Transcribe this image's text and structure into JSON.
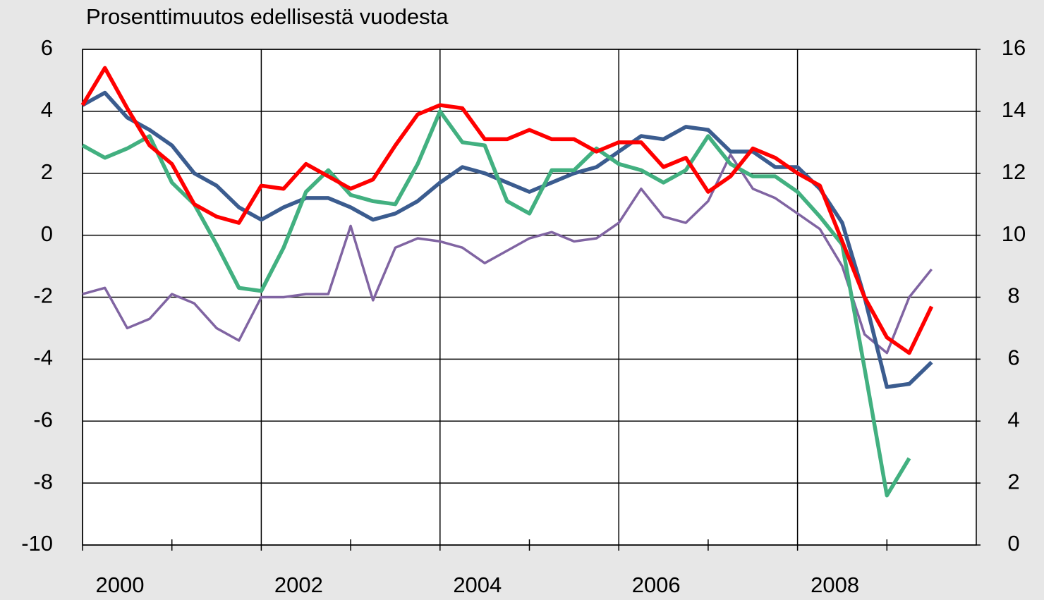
{
  "chart_data": {
    "type": "line",
    "title": "Prosenttimuutos edellisestä vuodesta",
    "x": [
      2000,
      2000.25,
      2000.5,
      2000.75,
      2001,
      2001.25,
      2001.5,
      2001.75,
      2002,
      2002.25,
      2002.5,
      2002.75,
      2003,
      2003.25,
      2003.5,
      2003.75,
      2004,
      2004.25,
      2004.5,
      2004.75,
      2005,
      2005.25,
      2005.5,
      2005.75,
      2006,
      2006.25,
      2006.5,
      2006.75,
      2007,
      2007.25,
      2007.5,
      2007.75,
      2008,
      2008.25,
      2008.5,
      2008.75,
      2009,
      2009.25,
      2009.5
    ],
    "series": [
      {
        "color": "#8064a2",
        "axis": "y2",
        "values": [
          8.1,
          8.3,
          7.0,
          7.3,
          8.1,
          7.8,
          7.0,
          6.6,
          8.0,
          8.0,
          8.1,
          8.1,
          10.3,
          7.9,
          9.6,
          9.9,
          9.8,
          9.6,
          9.1,
          9.5,
          9.9,
          10.1,
          9.8,
          9.9,
          10.4,
          11.5,
          10.6,
          10.4,
          11.1,
          12.6,
          11.5,
          11.2,
          10.7,
          10.2,
          9.0,
          6.8,
          6.2,
          8.0,
          8.9
        ]
      },
      {
        "color": "#3b5c8f",
        "values": [
          4.2,
          4.6,
          3.8,
          3.4,
          2.9,
          2.0,
          1.6,
          0.9,
          0.5,
          0.9,
          1.2,
          1.2,
          0.9,
          0.5,
          0.7,
          1.1,
          1.7,
          2.2,
          2.0,
          1.7,
          1.4,
          1.7,
          2.0,
          2.2,
          2.7,
          3.2,
          3.1,
          3.5,
          3.4,
          2.7,
          2.7,
          2.2,
          2.2,
          1.5,
          0.4,
          -2.0,
          -4.9,
          -4.8,
          -4.1
        ]
      },
      {
        "color": "#42b080",
        "values": [
          2.9,
          2.5,
          2.8,
          3.2,
          1.7,
          1.0,
          -0.3,
          -1.7,
          -1.8,
          -0.4,
          1.4,
          2.1,
          1.3,
          1.1,
          1.0,
          2.3,
          4.0,
          3.0,
          2.9,
          1.1,
          0.7,
          2.1,
          2.1,
          2.8,
          2.3,
          2.1,
          1.7,
          2.1,
          3.2,
          2.3,
          1.9,
          1.9,
          1.4,
          0.6,
          -0.3,
          -4.3,
          -8.4,
          -7.2,
          null
        ]
      },
      {
        "color": "#ff0000",
        "values": [
          4.2,
          5.4,
          4.1,
          2.9,
          2.3,
          1.0,
          0.6,
          0.4,
          1.6,
          1.5,
          2.3,
          1.9,
          1.5,
          1.8,
          2.9,
          3.9,
          4.2,
          4.1,
          3.1,
          3.1,
          3.4,
          3.1,
          3.1,
          2.7,
          3.0,
          3.0,
          2.2,
          2.5,
          1.4,
          1.9,
          2.8,
          2.5,
          2.0,
          1.6,
          -0.2,
          -2.0,
          -3.3,
          -3.8,
          -2.3
        ]
      }
    ],
    "xlim": [
      2000,
      2010
    ],
    "xticks": [
      2000,
      2002,
      2004,
      2006,
      2008
    ],
    "xminorticks": [
      2001,
      2003,
      2005,
      2007,
      2009
    ],
    "ylim": [
      -10,
      6
    ],
    "yticks": [
      -10,
      -8,
      -6,
      -4,
      -2,
      0,
      2,
      4,
      6
    ],
    "y2lim": [
      0,
      16
    ],
    "y2ticks": [
      0,
      2,
      4,
      6,
      8,
      10,
      12,
      14,
      16
    ],
    "grid": true
  }
}
